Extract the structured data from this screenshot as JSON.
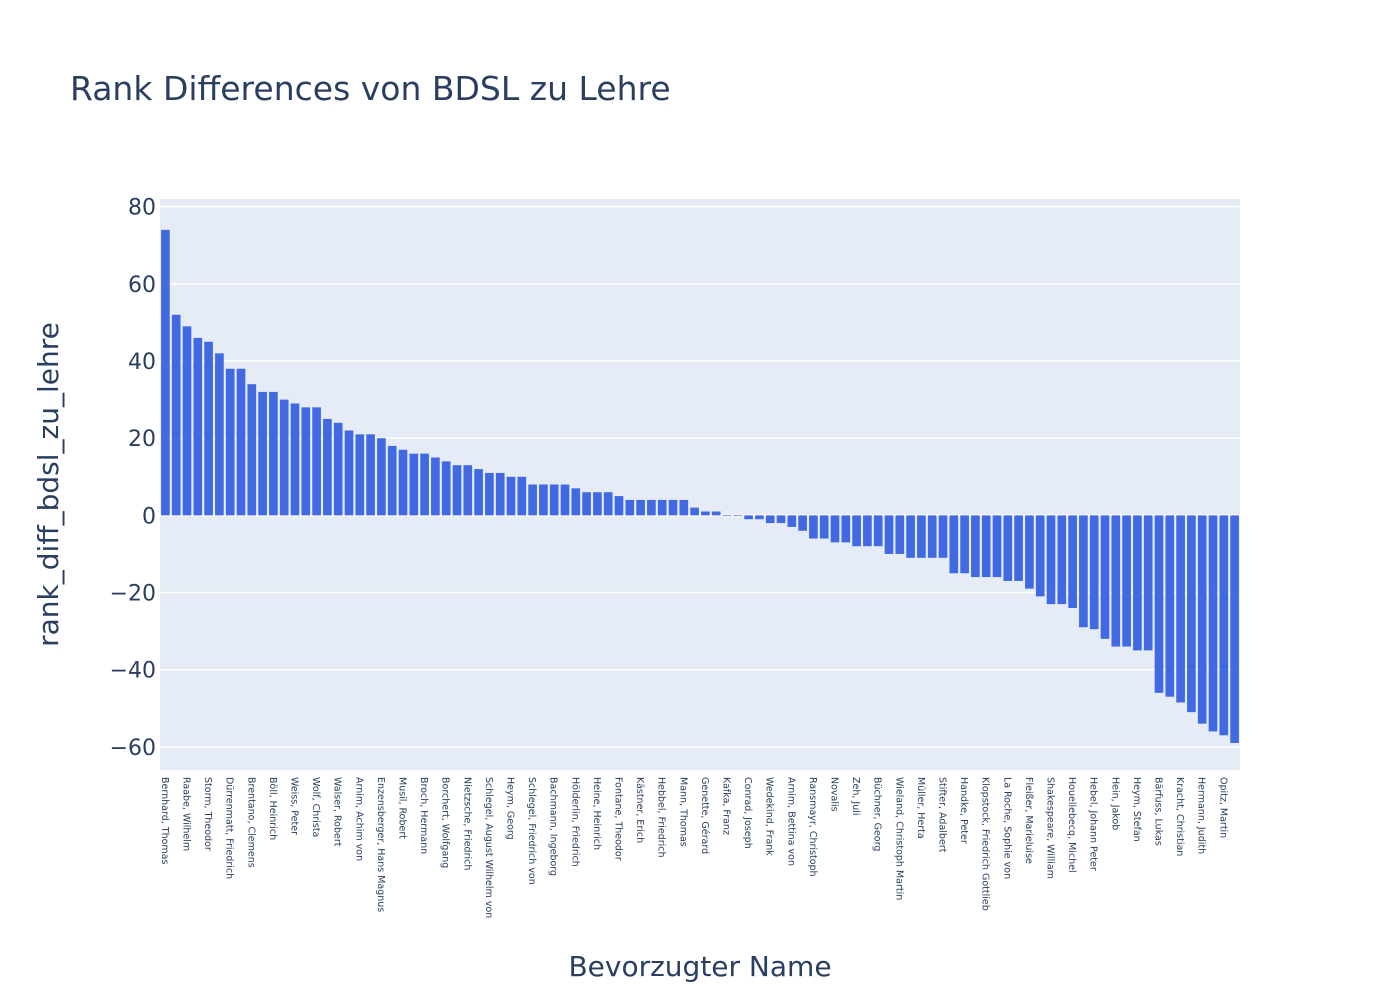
{
  "chart_data": {
    "type": "bar",
    "title": "Rank Differences von BDSL zu Lehre",
    "xlabel": "Bevorzugter Name",
    "ylabel": "rank_diff_bdsl_zu_lehre",
    "ylim": [
      -66,
      82
    ],
    "yticks": [
      -60,
      -40,
      -20,
      0,
      20,
      40,
      60,
      80
    ],
    "grid": true,
    "bar_color": "#4169e1",
    "plot_bg": "#e5ecf6",
    "categories": [
      "Bernhard, Thomas",
      "",
      "Raabe, Wilhelm",
      "",
      "Storm, Theodor",
      "",
      "Dürrenmatt, Friedrich",
      "",
      "Brentano, Clemens",
      "",
      "Böll, Heinrich",
      "",
      "Weiss, Peter",
      "",
      "Wolf, Christa",
      "",
      "Walser, Robert",
      "",
      "Arnim, Achim von",
      "",
      "Enzensberger, Hans Magnus",
      "",
      "Musil, Robert",
      "",
      "Broch, Hermann",
      "",
      "Borchert, Wolfgang",
      "",
      "Nietzsche, Friedrich",
      "",
      "Schlegel, August Wilhelm von",
      "",
      "Heym, Georg",
      "",
      "Schlegel, Friedrich von",
      "",
      "Bachmann, Ingeborg",
      "",
      "Hölderlin, Friedrich",
      "",
      "Heine, Heinrich",
      "",
      "Fontane, Theodor",
      "",
      "Kästner, Erich",
      "",
      "Hebbel, Friedrich",
      "",
      "Mann, Thomas",
      "",
      "Genette, Gérard",
      "",
      "Kafka, Franz",
      "",
      "Conrad, Joseph",
      "",
      "Wedekind, Frank",
      "",
      "Arnim, Bettina von",
      "",
      "Ransmayr, Christoph",
      "",
      "Novalis",
      "",
      "Zeh, Juli",
      "",
      "Büchner, Georg",
      "",
      "Wieland, Christoph Martin",
      "",
      "Müller, Herta",
      "",
      "Stifter, Adalbert",
      "",
      "Handke, Peter",
      "",
      "Klopstock, Friedrich Gottlieb",
      "",
      "La Roche, Sophie von",
      "",
      "Fleißer, Marieluise",
      "",
      "Shakespeare, William",
      "",
      "Houellebecq, Michel",
      "",
      "Hebel, Johann Peter",
      "",
      "Hein, Jakob",
      "",
      "Heym, Stefan",
      "",
      "Bärfuss, Lukas",
      "",
      "Kracht, Christian",
      "",
      "Hermann, Judith",
      "",
      "Opitz, Martin",
      ""
    ],
    "values": [
      74,
      52,
      49,
      46,
      45,
      42,
      38,
      38,
      34,
      32,
      32,
      30,
      29,
      28,
      28,
      25,
      24,
      22,
      21,
      21,
      20,
      18,
      17,
      16,
      16,
      15,
      14,
      13,
      13,
      12,
      11,
      11,
      10,
      10,
      8,
      8,
      8,
      8,
      7,
      6,
      6,
      6,
      5,
      4,
      4,
      4,
      4,
      4,
      4,
      2,
      1,
      1,
      0,
      0,
      -1,
      -1,
      -2,
      -2,
      -3,
      -4,
      -6,
      -6,
      -7,
      -7,
      -8,
      -8,
      -8,
      -10,
      -10,
      -11,
      -11,
      -11,
      -11,
      -15,
      -15,
      -16,
      -16,
      -16,
      -17,
      -17,
      -19,
      -21,
      -23,
      -23,
      -24,
      -29,
      -29.5,
      -32,
      -34,
      -34,
      -35,
      -35,
      -46,
      -47,
      -48.5,
      -51,
      -54,
      -56,
      -57,
      -59
    ]
  }
}
